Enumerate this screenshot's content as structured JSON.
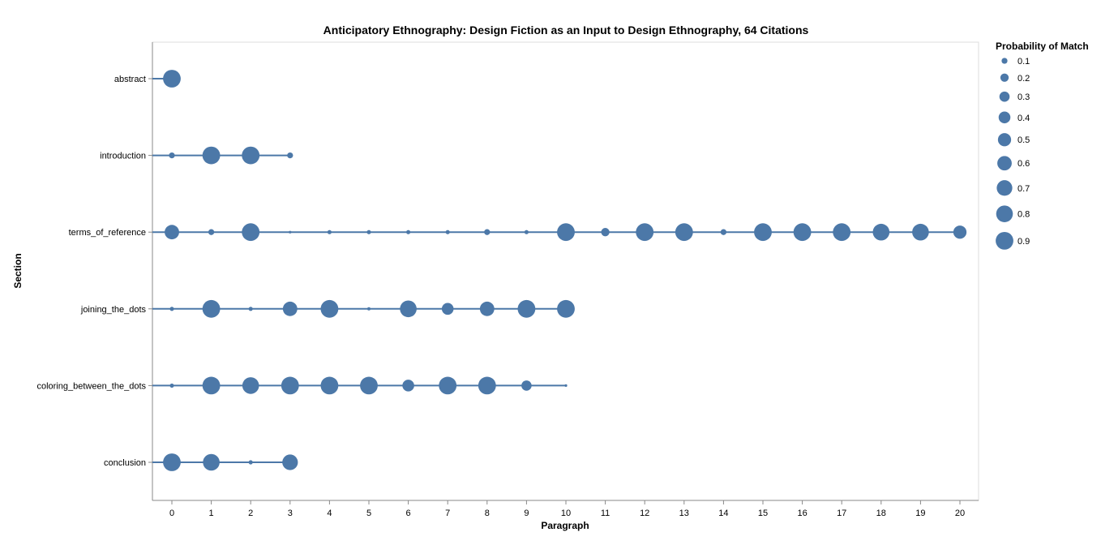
{
  "chart_data": {
    "type": "scatter",
    "title": "Anticipatory Ethnography: Design Fiction as an Input to Design Ethnography, 64 Citations",
    "xlabel": "Paragraph",
    "ylabel": "Section",
    "x_ticks": [
      0,
      1,
      2,
      3,
      4,
      5,
      6,
      7,
      8,
      9,
      10,
      11,
      12,
      13,
      14,
      15,
      16,
      17,
      18,
      19,
      20
    ],
    "xlim": [
      0,
      20
    ],
    "categories": [
      "abstract",
      "introduction",
      "terms_of_reference",
      "joining_the_dots",
      "coloring_between_the_dots",
      "conclusion"
    ],
    "grid": false,
    "color": "#4c78a8",
    "legend": {
      "title": "Probability of Match",
      "placement": "top-right",
      "values": [
        0.1,
        0.2,
        0.3,
        0.4,
        0.5,
        0.6,
        0.7,
        0.8,
        0.9
      ],
      "labels": [
        "0.1",
        "0.2",
        "0.3",
        "0.4",
        "0.5",
        "0.6",
        "0.7",
        "0.8",
        "0.9"
      ]
    },
    "series": [
      {
        "section": "abstract",
        "line_to": 0,
        "points": [
          {
            "x": 0,
            "p": 0.9
          }
        ]
      },
      {
        "section": "introduction",
        "line_to": 3,
        "points": [
          {
            "x": 0,
            "p": 0.1
          },
          {
            "x": 1,
            "p": 0.9
          },
          {
            "x": 2,
            "p": 0.9
          },
          {
            "x": 3,
            "p": 0.1
          }
        ]
      },
      {
        "section": "terms_of_reference",
        "line_to": 20,
        "points": [
          {
            "x": 0,
            "p": 0.6
          },
          {
            "x": 1,
            "p": 0.1
          },
          {
            "x": 2,
            "p": 0.9
          },
          {
            "x": 3,
            "p": 0.02
          },
          {
            "x": 4,
            "p": 0.05
          },
          {
            "x": 5,
            "p": 0.05
          },
          {
            "x": 6,
            "p": 0.05
          },
          {
            "x": 7,
            "p": 0.05
          },
          {
            "x": 8,
            "p": 0.1
          },
          {
            "x": 9,
            "p": 0.05
          },
          {
            "x": 10,
            "p": 0.9
          },
          {
            "x": 11,
            "p": 0.2
          },
          {
            "x": 12,
            "p": 0.9
          },
          {
            "x": 13,
            "p": 0.9
          },
          {
            "x": 14,
            "p": 0.1
          },
          {
            "x": 15,
            "p": 0.9
          },
          {
            "x": 16,
            "p": 0.9
          },
          {
            "x": 17,
            "p": 0.9
          },
          {
            "x": 18,
            "p": 0.8
          },
          {
            "x": 19,
            "p": 0.8
          },
          {
            "x": 20,
            "p": 0.5
          }
        ]
      },
      {
        "section": "joining_the_dots",
        "line_to": 10,
        "points": [
          {
            "x": 0,
            "p": 0.05
          },
          {
            "x": 1,
            "p": 0.9
          },
          {
            "x": 2,
            "p": 0.05
          },
          {
            "x": 3,
            "p": 0.6
          },
          {
            "x": 4,
            "p": 0.9
          },
          {
            "x": 5,
            "p": 0.03
          },
          {
            "x": 6,
            "p": 0.8
          },
          {
            "x": 7,
            "p": 0.4
          },
          {
            "x": 8,
            "p": 0.6
          },
          {
            "x": 9,
            "p": 0.9
          },
          {
            "x": 10,
            "p": 0.9
          }
        ]
      },
      {
        "section": "coloring_between_the_dots",
        "line_to": 10,
        "points": [
          {
            "x": 0,
            "p": 0.05
          },
          {
            "x": 1,
            "p": 0.9
          },
          {
            "x": 2,
            "p": 0.8
          },
          {
            "x": 3,
            "p": 0.9
          },
          {
            "x": 4,
            "p": 0.9
          },
          {
            "x": 5,
            "p": 0.9
          },
          {
            "x": 6,
            "p": 0.4
          },
          {
            "x": 7,
            "p": 0.9
          },
          {
            "x": 8,
            "p": 0.9
          },
          {
            "x": 9,
            "p": 0.3
          },
          {
            "x": 10,
            "p": 0.02
          }
        ]
      },
      {
        "section": "conclusion",
        "line_to": 3,
        "points": [
          {
            "x": 0,
            "p": 0.9
          },
          {
            "x": 1,
            "p": 0.8
          },
          {
            "x": 2,
            "p": 0.05
          },
          {
            "x": 3,
            "p": 0.7
          }
        ]
      }
    ]
  }
}
